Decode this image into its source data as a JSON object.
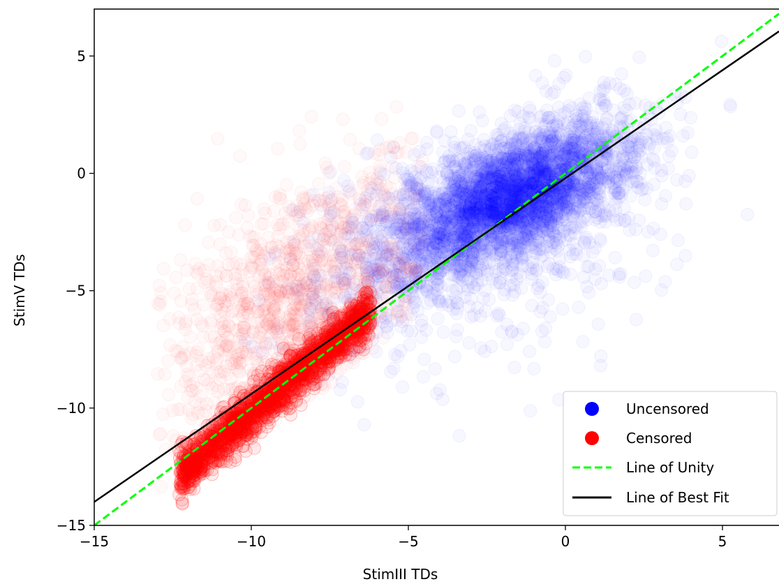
{
  "chart_data": {
    "type": "scatter",
    "title": "",
    "xlabel": "StimIII TDs",
    "ylabel": "StimV TDs",
    "xlim": [
      -15,
      6.8
    ],
    "ylim": [
      -15,
      7.0
    ],
    "xticks": [
      -15,
      -10,
      -5,
      0,
      5
    ],
    "yticks": [
      -15,
      -10,
      -5,
      0,
      5
    ],
    "xtick_labels": [
      "−15",
      "−10",
      "−5",
      "0",
      "5"
    ],
    "ytick_labels": [
      "−15",
      "−10",
      "−5",
      "0",
      "5"
    ],
    "grid": false,
    "legend_position": "bottom-right",
    "series": [
      {
        "name": "Uncensored",
        "kind": "scatter",
        "color": "#0000ff",
        "marker": "circle",
        "clusters": [
          {
            "center": [
              -1.5,
              -0.8
            ],
            "sx": 1.8,
            "sy": 1.5,
            "rho": 0.6,
            "weight": 0.6
          },
          {
            "center": [
              -3.0,
              -2.0
            ],
            "sx": 2.2,
            "sy": 2.0,
            "rho": 0.55,
            "weight": 0.3
          },
          {
            "center": [
              -2.0,
              -3.0
            ],
            "sx": 3.0,
            "sy": 3.0,
            "rho": 0.45,
            "weight": 0.1
          }
        ],
        "x_range": [
          -12.5,
          6.5
        ],
        "y_range": [
          -14,
          6
        ]
      },
      {
        "name": "Censored",
        "kind": "scatter",
        "color": "#ff0000",
        "marker": "circle",
        "dense_band": {
          "x_range": [
            -12.3,
            -6.2
          ],
          "y_intercept_at_x": [
            -12.3,
            -13.2
          ],
          "slope": 1.15,
          "y_spread": 0.9
        },
        "diffuse_cloud": {
          "center": [
            -8.5,
            -5.5
          ],
          "sx": 2.2,
          "sy": 3.0,
          "rho": 0.5
        },
        "x_range": [
          -13,
          -4.5
        ],
        "y_range": [
          -13.5,
          3
        ]
      },
      {
        "name": "Line of Unity",
        "kind": "line",
        "color": "#00ff00",
        "style": "dashed",
        "x": [
          -15,
          6.8
        ],
        "y": [
          -15,
          6.8
        ]
      },
      {
        "name": "Line of Best Fit",
        "kind": "line",
        "color": "#000000",
        "style": "solid",
        "x": [
          -15,
          6.8
        ],
        "y": [
          -14.0,
          6.05
        ]
      }
    ]
  }
}
